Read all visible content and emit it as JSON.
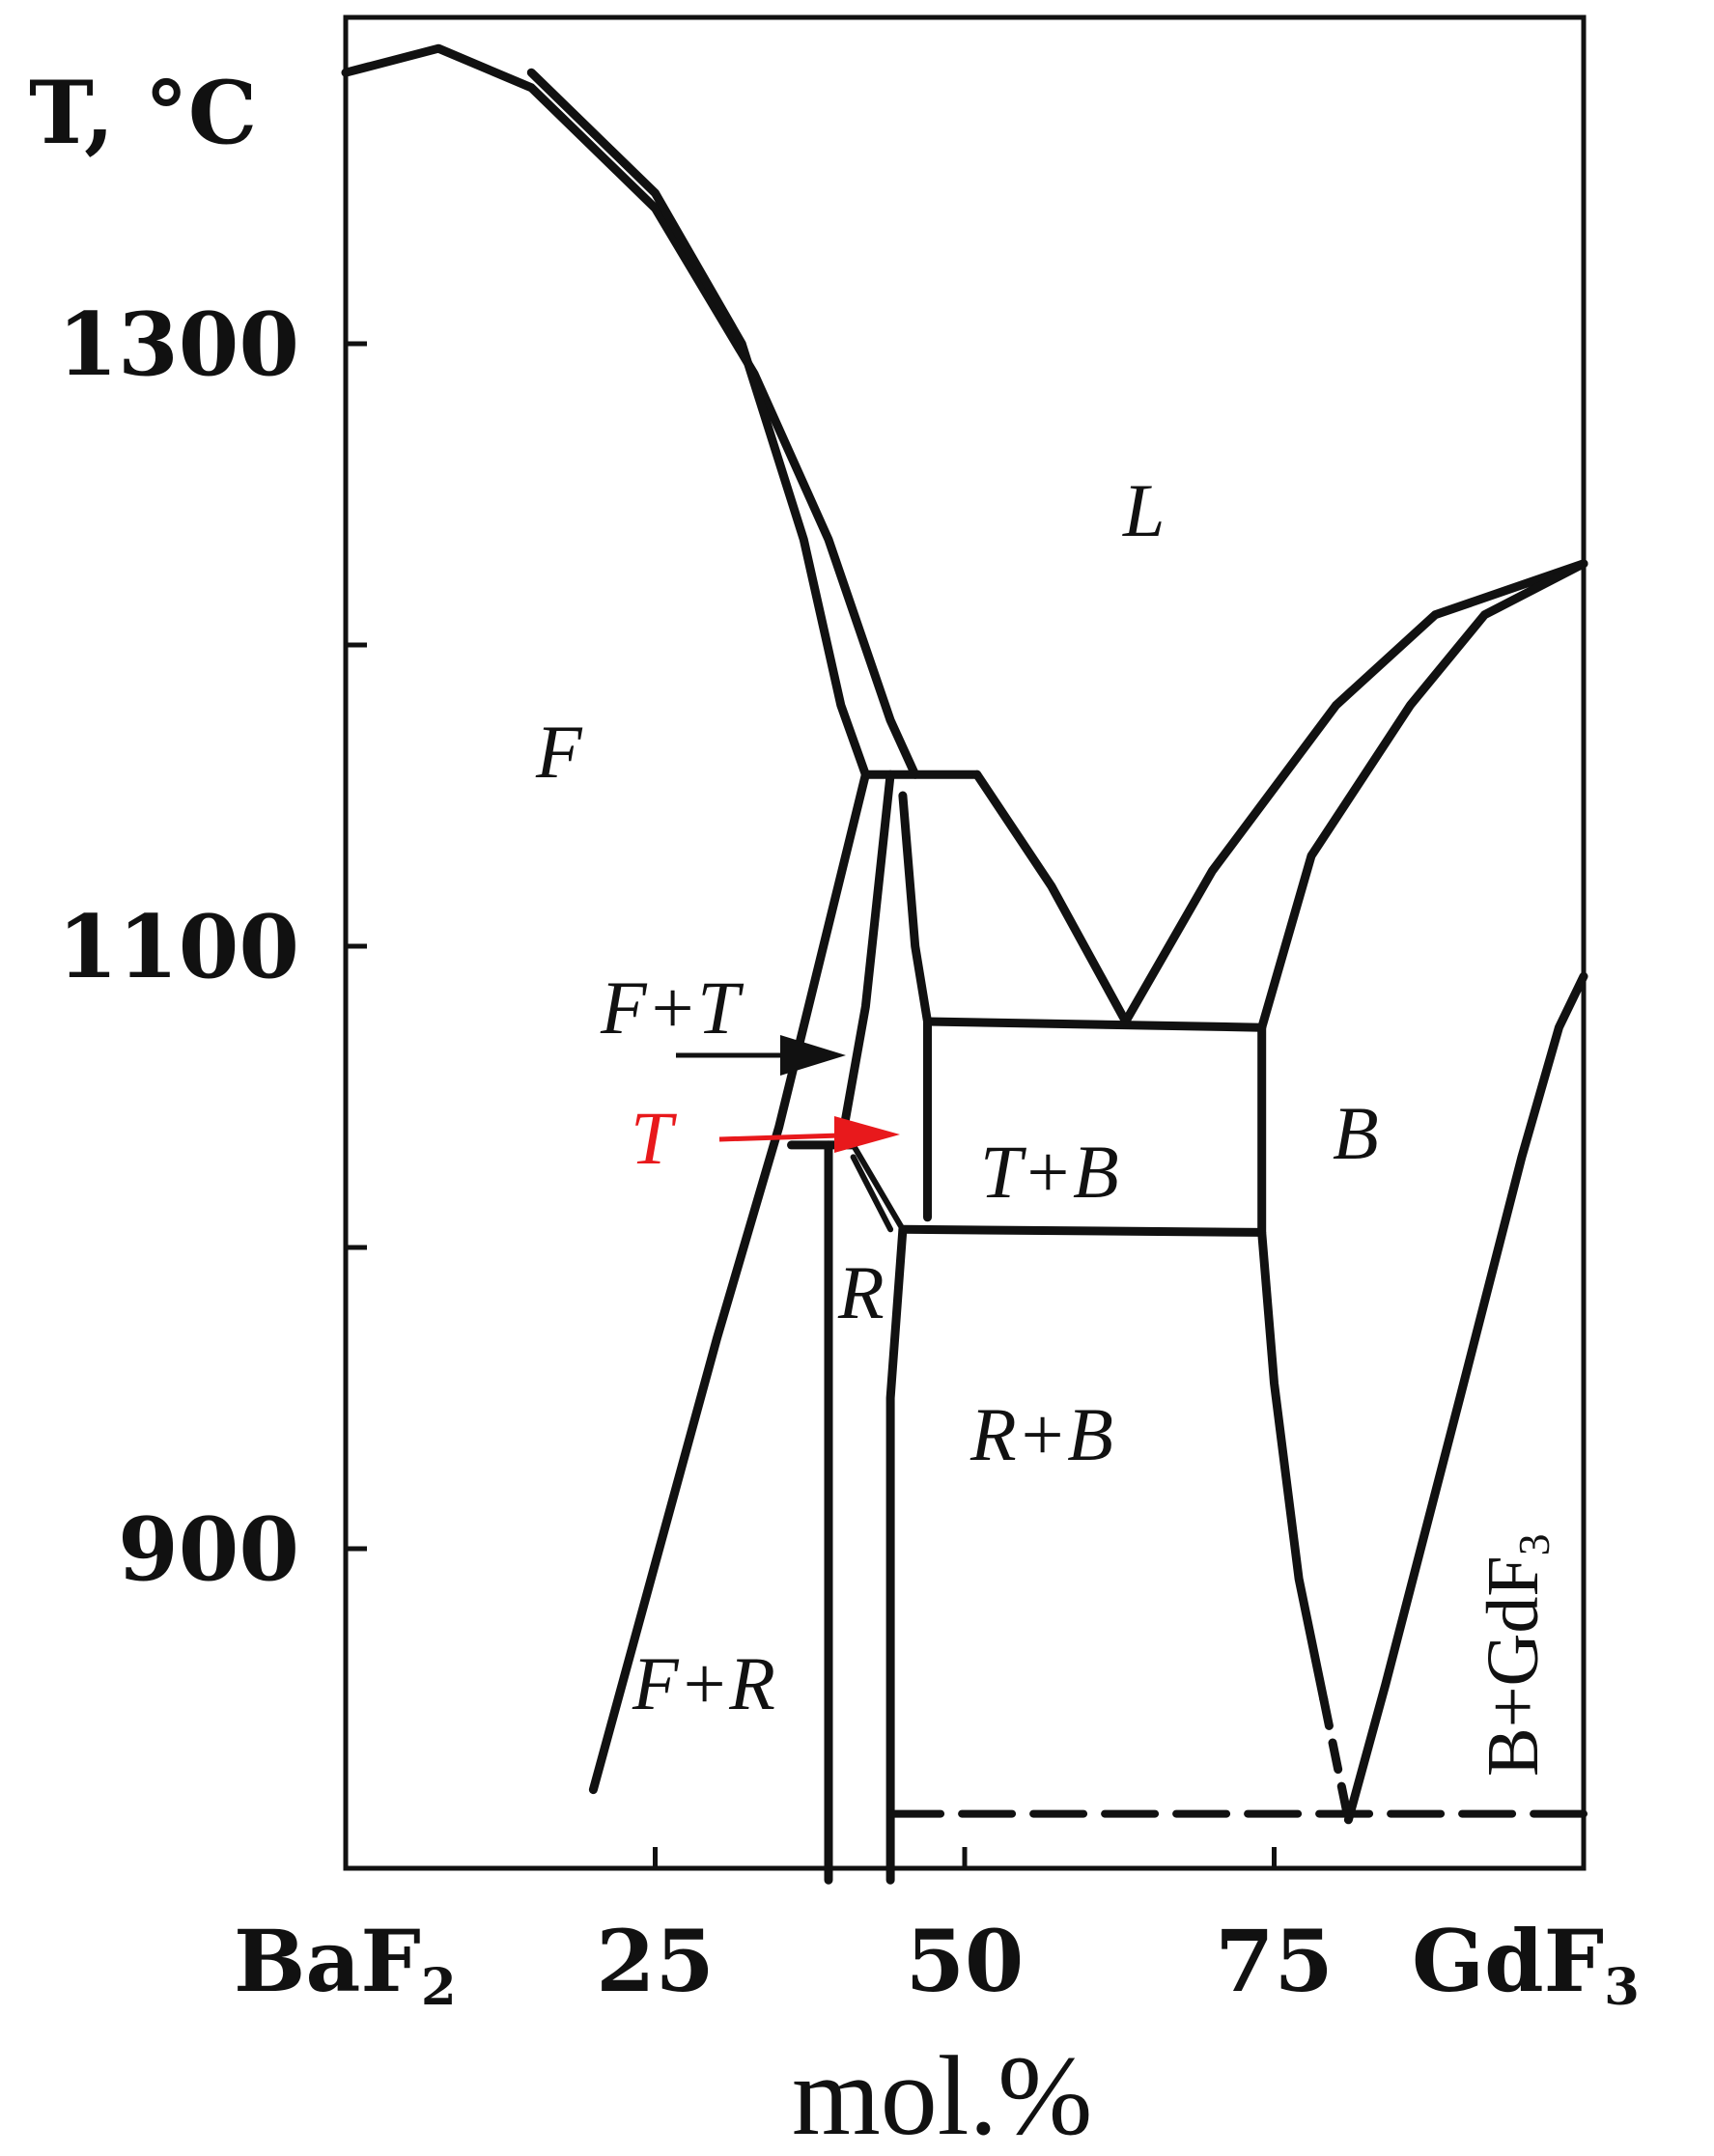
{
  "chart_data": {
    "type": "phase_diagram",
    "system": [
      "BaF2",
      "GdF3"
    ],
    "y_axis": {
      "label": "T, °C",
      "ticks": [
        900,
        1100,
        1300
      ],
      "minor_ticks": [
        1000,
        1200
      ],
      "range": [
        800,
        1420
      ]
    },
    "x_axis": {
      "label": "mol.%",
      "left_end_label": {
        "main": "BaF",
        "sub": "2"
      },
      "right_end_label": {
        "main": "GdF",
        "sub": "3"
      },
      "ticks": [
        25,
        50,
        75
      ],
      "range": [
        0,
        100
      ]
    },
    "fields": {
      "L": "L",
      "F": "F",
      "F_T": "F+T",
      "T": "T",
      "T_B": "T+B",
      "B": "B",
      "R": "R",
      "R_B": "R+B",
      "F_R": "F+R",
      "B_GdF3": {
        "main": "B+GdF",
        "sub": "3"
      }
    },
    "arrows": [
      {
        "label": "F+T",
        "color": "#111111"
      },
      {
        "label": "T",
        "color": "#e8191c"
      }
    ],
    "boundaries": {
      "F_liquidus": [
        [
          0,
          1390
        ],
        [
          7.5,
          1398
        ],
        [
          15,
          1385
        ],
        [
          25,
          1345
        ],
        [
          33,
          1290
        ],
        [
          39,
          1235
        ],
        [
          44,
          1175
        ],
        [
          46,
          1157
        ]
      ],
      "F_solidus": [
        [
          15,
          1390
        ],
        [
          25,
          1350
        ],
        [
          32,
          1300
        ],
        [
          37,
          1235
        ],
        [
          40,
          1180
        ],
        [
          42,
          1157
        ]
      ],
      "T_peritectic_line": [
        [
          42,
          1157
        ],
        [
          51,
          1157
        ]
      ],
      "L_T_B_liquidus": [
        [
          51,
          1157
        ],
        [
          57,
          1120
        ],
        [
          63,
          1075
        ]
      ],
      "B_liquidus": [
        [
          63,
          1075
        ],
        [
          70,
          1125
        ],
        [
          80,
          1180
        ],
        [
          88,
          1210
        ],
        [
          100,
          1227
        ]
      ],
      "B_solidus": [
        [
          74,
          1073
        ],
        [
          78,
          1130
        ],
        [
          86,
          1180
        ],
        [
          92,
          1210
        ],
        [
          100,
          1227
        ]
      ],
      "eutectic_line": [
        [
          47,
          1075
        ],
        [
          74,
          1073
        ]
      ],
      "F_solvus": [
        [
          20,
          820
        ],
        [
          25,
          895
        ],
        [
          30,
          970
        ],
        [
          35,
          1040
        ],
        [
          42,
          1157
        ]
      ],
      "T_left_boundary": [
        [
          40,
          1034
        ],
        [
          42,
          1080
        ],
        [
          44,
          1157
        ]
      ],
      "T_right_boundary": [
        [
          45,
          1150
        ],
        [
          46,
          1100
        ],
        [
          47,
          1075
        ],
        [
          47,
          1010
        ]
      ],
      "R_left_boundary": [
        [
          39,
          1034
        ],
        [
          39,
          790
        ]
      ],
      "R_right_boundary": [
        [
          45,
          1006
        ],
        [
          44,
          950
        ],
        [
          44,
          790
        ]
      ],
      "F_R_line": [
        [
          36,
          1034
        ],
        [
          41,
          1034
        ]
      ],
      "T_R_lines": [
        [
          [
            41,
            1034
          ],
          [
            45,
            1006
          ]
        ],
        [
          [
            41,
            1030
          ],
          [
            44,
            1006
          ]
        ]
      ],
      "T_B_lower_line": [
        [
          45,
          1006
        ],
        [
          74,
          1005
        ]
      ],
      "B_left_boundary": [
        [
          74,
          1073
        ],
        [
          74,
          1005
        ],
        [
          75,
          955
        ],
        [
          77,
          890
        ],
        [
          79,
          850
        ]
      ],
      "B_dashed_lower": [
        [
          79,
          850
        ],
        [
          81,
          810
        ]
      ],
      "B_right_boundary": [
        [
          81,
          810
        ],
        [
          84,
          855
        ],
        [
          90,
          950
        ],
        [
          95,
          1030
        ],
        [
          98,
          1073
        ],
        [
          100,
          1090
        ]
      ],
      "B_right_dashed": [
        [
          81,
          810
        ],
        [
          84,
          855
        ]
      ],
      "solid_state_line_dashed": [
        [
          44,
          812
        ],
        [
          100,
          812
        ]
      ]
    }
  }
}
